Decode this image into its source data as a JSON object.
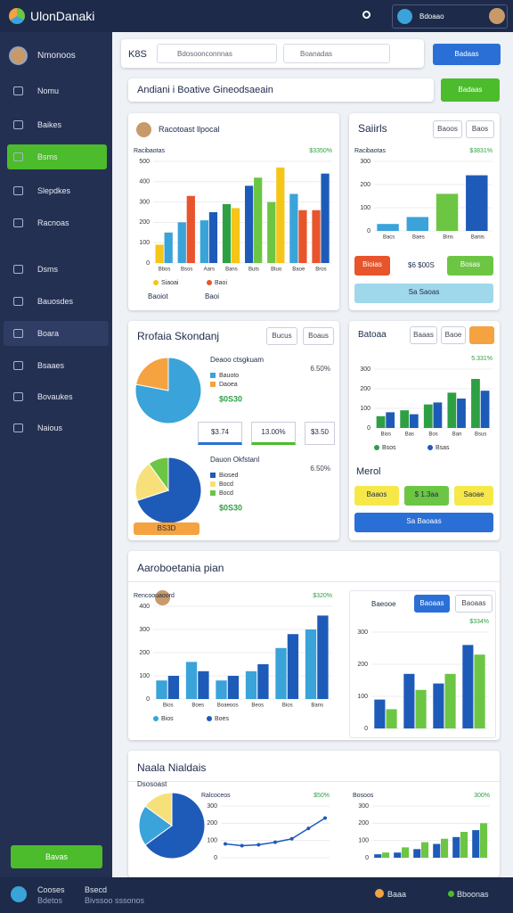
{
  "header": {
    "brand": "UlonDanaki",
    "user": "Bdoaao"
  },
  "sidebar": {
    "profile": "Nmonoos",
    "items": [
      "Nomu",
      "Baikes",
      "Bsms",
      "Slepdkes",
      "Racnoas",
      "Dsms",
      "Bauosdes",
      "Boara",
      "Bsaaes",
      "Bovaukes",
      "Naious"
    ],
    "button": "Bavas"
  },
  "toolbar": {
    "label": "K8S",
    "search1": "Bdosoonconnnas",
    "search2": "Boanadas",
    "button": "Badaas"
  },
  "page": {
    "title": "Andiani i Boative Gineodsaeain",
    "button": "Badaas"
  },
  "panel_a": {
    "title": "Racotoast llpocal",
    "foot1": "Baoiot",
    "foot2": "Baoi"
  },
  "panel_b": {
    "title": "Saiirls",
    "buttons": [
      "Baoos",
      "Baos"
    ],
    "orange": "Bioias",
    "amount": "$6 $00S",
    "green": "Bosas",
    "bar": "Sa Saoas"
  },
  "panel_c": {
    "title": "Rrofaia Skondanj",
    "buttons": [
      "Bucus",
      "Boaus"
    ],
    "chips": [
      "$3.74",
      "13.00%",
      "$3.50"
    ],
    "badge": "BS3D"
  },
  "panel_d": {
    "title": "Batoaa",
    "buttons": [
      "Baaas",
      "Baoe"
    ],
    "label": "Merol",
    "chips": [
      "Baaos",
      "$ 1.3aa",
      "Saoae"
    ],
    "wide": "Sa Baoaas"
  },
  "panel_e": {
    "title": "Aaroboetania pian",
    "tab1": "Baeooe",
    "tab2": "Baoaas",
    "tab3": "Baoaas"
  },
  "panel_f": {
    "title": "Naala Nialdais"
  },
  "footer": {
    "name": "Cooses",
    "sub": "Bdetos",
    "info": "Bsecd",
    "info2": "Bivssoo sssonos",
    "stat1": "Baaa",
    "stat2": "Bboonas"
  },
  "chart_data": [
    {
      "type": "bar",
      "subtitle": "Racibaotas",
      "note": "$3350%",
      "ylim": [
        0,
        500
      ],
      "yticks": [
        0,
        100,
        200,
        300,
        400,
        500
      ],
      "categories": [
        "Bbos",
        "Bsos",
        "Aars",
        "Bans",
        "Buts",
        "Bluo",
        "Baoe",
        "Bros"
      ],
      "series": [
        {
          "name": "Siaoai",
          "color": "#f5c518",
          "colors": [
            "#f5c518",
            "#3aa3d9",
            "#3aa3d9",
            "#2ea043",
            "#1e5bb8",
            "#6cc644",
            "#3aa3d9",
            "#e8542b"
          ],
          "values": [
            90,
            200,
            210,
            290,
            380,
            300,
            340,
            260
          ]
        },
        {
          "name": "Baoi",
          "color": "#e8542b",
          "colors": [
            "#3aa3d9",
            "#e8542b",
            "#1e5bb8",
            "#f5c518",
            "#6cc644",
            "#f5c518",
            "#e8542b",
            "#1e5bb8"
          ],
          "values": [
            150,
            330,
            250,
            270,
            420,
            470,
            260,
            440
          ]
        }
      ]
    },
    {
      "type": "bar",
      "subtitle": "Racibaotas",
      "note": "$3831%",
      "ylim": [
        0,
        300
      ],
      "yticks": [
        0,
        100,
        200,
        300
      ],
      "categories": [
        "Bacs",
        "Baes",
        "Bins",
        "Banis"
      ],
      "series": [
        {
          "color": "#3aa3d9",
          "colors": [
            "#3aa3d9",
            "#3aa3d9",
            "#6cc644",
            "#1e5bb8"
          ],
          "values": [
            30,
            60,
            160,
            240
          ]
        }
      ]
    },
    {
      "type": "pie",
      "title": "Deaoo ctsgkuam",
      "note": "6.50%",
      "caption": "$0S30",
      "categories": [
        "Bauoto",
        "Daoea"
      ],
      "values": [
        78,
        22
      ],
      "colors": [
        "#3aa3d9",
        "#f4a340"
      ]
    },
    {
      "type": "pie",
      "title": "Dauon Okfstanl",
      "note": "6.50%",
      "caption": "$0S30",
      "categories": [
        "Biosed",
        "Bocd",
        "Bocd"
      ],
      "values": [
        70,
        20,
        10
      ],
      "colors": [
        "#1e5bb8",
        "#f7e07a",
        "#6cc644"
      ]
    },
    {
      "type": "bar",
      "note": "5.331%",
      "ylim": [
        0,
        300
      ],
      "yticks": [
        0,
        100,
        200,
        300
      ],
      "categories": [
        "Bios",
        "Bas",
        "Bos",
        "Ban",
        "Bsus"
      ],
      "series": [
        {
          "name": "Bsos",
          "color": "#2ea043",
          "values": [
            60,
            90,
            120,
            180,
            250
          ]
        },
        {
          "name": "Bsas",
          "color": "#1e5bb8",
          "values": [
            80,
            70,
            130,
            150,
            190
          ]
        }
      ]
    },
    {
      "type": "bar",
      "subtitle": "Rencoouaoord",
      "note": "$320%",
      "ylim": [
        0,
        400
      ],
      "yticks": [
        0,
        100,
        200,
        300,
        400
      ],
      "categories": [
        "Bios",
        "Boes",
        "Boaeoos",
        "Beos",
        "Bios",
        "Bans"
      ],
      "series": [
        {
          "name": "Bios",
          "color": "#3aa3d9",
          "values": [
            80,
            160,
            80,
            120,
            220,
            300
          ]
        },
        {
          "name": "Boes",
          "color": "#1e5bb8",
          "values": [
            100,
            120,
            100,
            150,
            280,
            360
          ]
        }
      ]
    },
    {
      "type": "bar",
      "note": "$334%",
      "ylim": [
        0,
        300
      ],
      "yticks": [
        0,
        100,
        200,
        300
      ],
      "series": [
        {
          "color": "#1e5bb8",
          "values": [
            90,
            170,
            140,
            260
          ]
        },
        {
          "color": "#6cc644",
          "values": [
            60,
            120,
            170,
            230
          ]
        }
      ]
    },
    {
      "type": "pie",
      "title": "Dsosoast",
      "values": [
        65,
        20,
        15
      ],
      "colors": [
        "#1e5bb8",
        "#3aa3d9",
        "#f7e07a"
      ]
    },
    {
      "type": "line",
      "subtitle": "Ralcoceos",
      "note": "$50%",
      "color": "#1e5bb8",
      "ylim": [
        0,
        300
      ],
      "yticks": [
        0,
        100,
        200,
        300
      ],
      "values": [
        80,
        70,
        75,
        90,
        110,
        170,
        230
      ]
    },
    {
      "type": "bar",
      "subtitle": "Bosoos",
      "note": "300%",
      "ylim": [
        0,
        300
      ],
      "yticks": [
        0,
        100,
        200,
        300
      ],
      "series": [
        {
          "color": "#1e5bb8",
          "values": [
            20,
            30,
            50,
            80,
            120,
            160
          ]
        },
        {
          "color": "#6cc644",
          "values": [
            30,
            60,
            90,
            110,
            150,
            200
          ]
        }
      ]
    }
  ]
}
